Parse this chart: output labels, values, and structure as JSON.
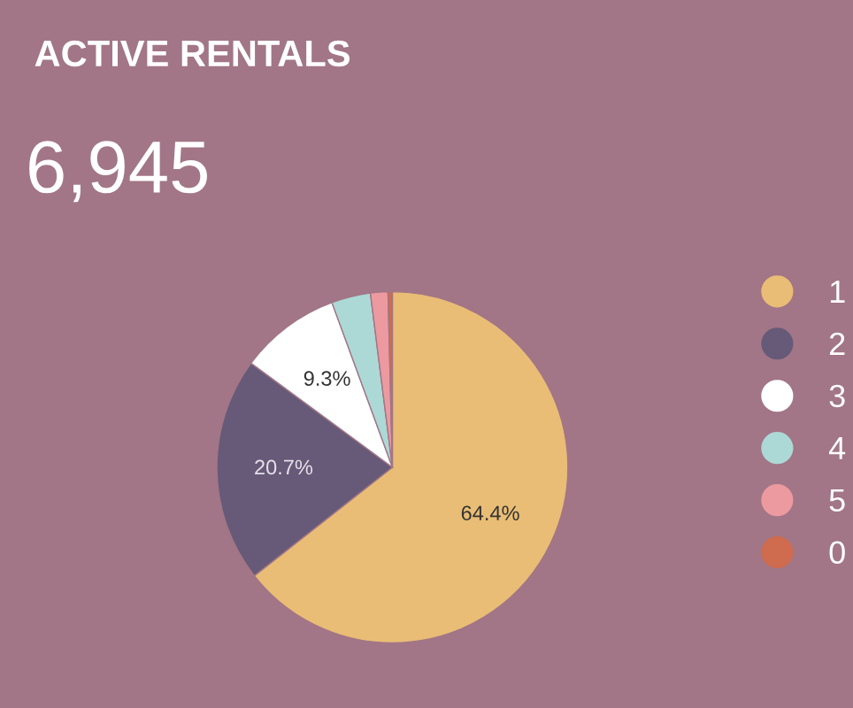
{
  "chart_data": {
    "type": "pie",
    "title": "ACTIVE RENTALS",
    "annotations": [
      "6,945"
    ],
    "categories": [
      "1",
      "2",
      "3",
      "4",
      "5",
      "0"
    ],
    "values": [
      64.4,
      20.7,
      9.3,
      3.6,
      1.6,
      0.4
    ],
    "colors": [
      "#e9bd75",
      "#665a78",
      "#ffffff",
      "#acd9d6",
      "#ec9aa0",
      "#cf6b4e"
    ],
    "value_labels": [
      "64.4%",
      "20.7%",
      "9.3%",
      null,
      null,
      null
    ],
    "legend": "right"
  }
}
